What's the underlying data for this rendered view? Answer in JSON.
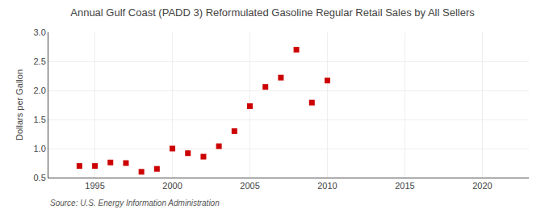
{
  "chart_data": {
    "type": "scatter",
    "title": "Annual Gulf Coast (PADD 3) Reformulated Gasoline Regular Retail Sales by All Sellers",
    "ylabel": "Dollars per Gallon",
    "source": "Source: U.S. Energy Information Administration",
    "x": [
      1994,
      1995,
      1996,
      1997,
      1998,
      1999,
      2000,
      2001,
      2002,
      2003,
      2004,
      2005,
      2006,
      2007,
      2008,
      2009,
      2010
    ],
    "values": [
      0.7,
      0.7,
      0.76,
      0.75,
      0.6,
      0.65,
      1.0,
      0.92,
      0.86,
      1.04,
      1.3,
      1.73,
      2.06,
      2.22,
      2.7,
      1.79,
      2.17
    ],
    "color": "#cc0000",
    "marker": "square",
    "xlim": [
      1992,
      2023
    ],
    "ylim": [
      0.5,
      3.0
    ],
    "xticks": [
      1995,
      2000,
      2005,
      2010,
      2015,
      2020
    ],
    "yticks": [
      0.5,
      {
        "value": 1.0,
        "label": "1.0"
      },
      1.5,
      {
        "value": 2.0,
        "label": "2.0"
      },
      2.5,
      {
        "value": 3.0,
        "label": "3.0"
      }
    ],
    "grid": true
  }
}
